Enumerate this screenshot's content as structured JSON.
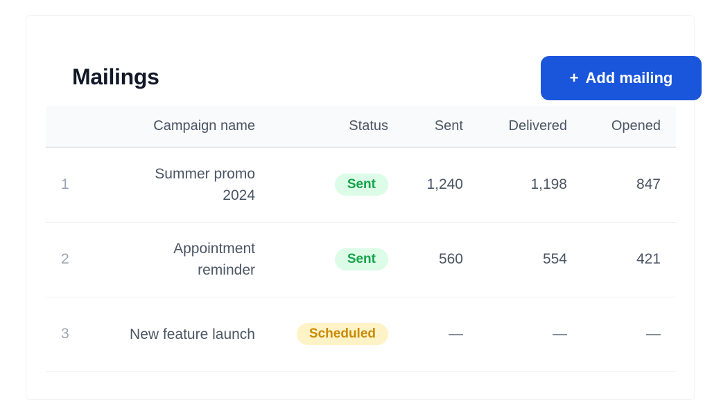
{
  "header": {
    "title": "Mailings",
    "add_button": {
      "icon": "plus-icon",
      "icon_glyph": "+",
      "label": "Add mailing"
    }
  },
  "table": {
    "columns": [
      "",
      "Campaign name",
      "Status",
      "Sent",
      "Delivered",
      "Opened"
    ],
    "rows": [
      {
        "index": "1",
        "name": "Summer promo 2024",
        "status": "Sent",
        "sent": "1,240",
        "delivered": "1,198",
        "opened": "847"
      },
      {
        "index": "2",
        "name": "Appointment reminder",
        "status": "Sent",
        "sent": "560",
        "delivered": "554",
        "opened": "421"
      },
      {
        "index": "3",
        "name": "New feature launch",
        "status": "Scheduled",
        "sent": "—",
        "delivered": "—",
        "opened": "—"
      }
    ]
  },
  "colors": {
    "primary": "#1a56db",
    "status_sent_bg": "#dcfce7",
    "status_sent_text": "#16a34a",
    "status_scheduled_bg": "#fef3c7",
    "status_scheduled_text": "#ca8a04"
  }
}
